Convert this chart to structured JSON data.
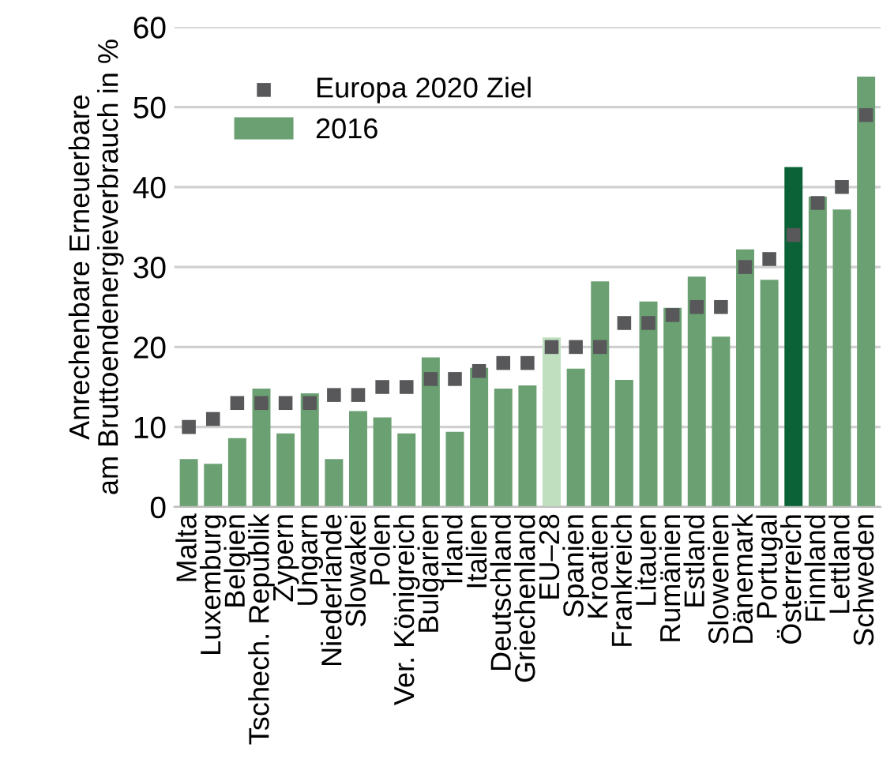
{
  "chart_data": {
    "type": "bar",
    "ylabel": "Anrechenbare Erneuerbare\nam Bruttoendenergieverbrauch in %",
    "categories": [
      "Malta",
      "Luxemburg",
      "Belgien",
      "Tschech. Republik",
      "Zypern",
      "Ungarn",
      "Niederlande",
      "Slowakei",
      "Polen",
      "Ver. Königreich",
      "Bulgarien",
      "Irland",
      "Italien",
      "Deutschland",
      "Griechenland",
      "EU–28",
      "Spanien",
      "Kroatien",
      "Frankreich",
      "Litauen",
      "Rumänien",
      "Estland",
      "Slowenien",
      "Dänemark",
      "Portugal",
      "Österreich",
      "Finnland",
      "Lettland",
      "Schweden"
    ],
    "series": [
      {
        "name": "Europa 2020 Ziel",
        "type": "scatter",
        "color": "#58585b",
        "values": [
          10,
          11,
          13,
          13,
          13,
          13,
          14,
          14,
          15,
          15,
          16,
          16,
          17,
          18,
          18,
          20,
          20,
          20,
          23,
          23,
          24,
          25,
          25,
          30,
          31,
          34,
          38,
          40,
          49
        ]
      },
      {
        "name": "2016",
        "color": "#6aa072",
        "colors": [
          "#6aa072",
          "#6aa072",
          "#6aa072",
          "#6aa072",
          "#6aa072",
          "#6aa072",
          "#6aa072",
          "#6aa072",
          "#6aa072",
          "#6aa072",
          "#6aa072",
          "#6aa072",
          "#6aa072",
          "#6aa072",
          "#6aa072",
          "#c0dfbe",
          "#6aa072",
          "#6aa072",
          "#6aa072",
          "#6aa072",
          "#6aa072",
          "#6aa072",
          "#6aa072",
          "#6aa072",
          "#6aa072",
          "#0b6236",
          "#6aa072",
          "#6aa072",
          "#6aa072"
        ],
        "values": [
          6.0,
          5.4,
          8.6,
          14.8,
          9.2,
          14.2,
          6.0,
          12.0,
          11.2,
          9.2,
          18.7,
          9.4,
          17.4,
          14.8,
          15.2,
          21.2,
          17.3,
          28.2,
          15.9,
          25.7,
          24.9,
          28.8,
          21.3,
          32.2,
          28.4,
          42.5,
          38.8,
          37.2,
          53.8
        ]
      }
    ],
    "ylim": [
      0,
      60
    ],
    "yticks": [
      0,
      10,
      20,
      30,
      40,
      50,
      60
    ],
    "grid": "y",
    "legend": "top left",
    "marker": "square"
  }
}
